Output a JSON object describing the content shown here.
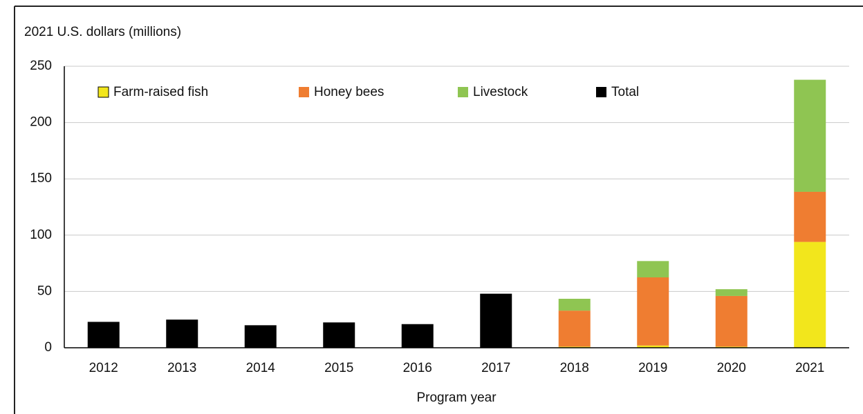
{
  "chart_data": {
    "type": "stacked-bar",
    "y_label": "2021 U.S. dollars (millions)",
    "x_label": "Program year",
    "categories": [
      "2012",
      "2013",
      "2014",
      "2015",
      "2016",
      "2017",
      "2018",
      "2019",
      "2020",
      "2021"
    ],
    "series": [
      {
        "name": "Farm-raised fish",
        "color": "#f2e61c",
        "values": [
          null,
          null,
          null,
          null,
          null,
          null,
          1,
          2,
          1,
          94
        ]
      },
      {
        "name": "Honey bees",
        "color": "#ef7d31",
        "values": [
          null,
          null,
          null,
          null,
          null,
          null,
          32,
          60.5,
          45,
          44.5
        ]
      },
      {
        "name": "Livestock",
        "color": "#8fc552",
        "values": [
          null,
          null,
          null,
          null,
          null,
          null,
          10.5,
          14.5,
          6,
          99.5
        ]
      },
      {
        "name": "Total",
        "color": "#000000",
        "values": [
          23,
          25,
          20,
          22.5,
          21,
          48,
          null,
          null,
          null,
          null
        ]
      }
    ],
    "ylim": [
      0,
      250
    ],
    "yticks": [
      0,
      50,
      100,
      150,
      200,
      250
    ],
    "grid": true
  }
}
